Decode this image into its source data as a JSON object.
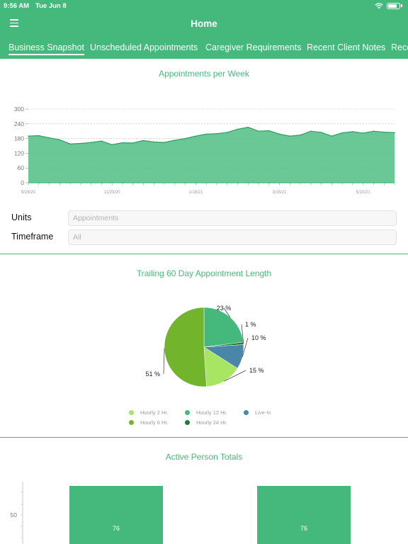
{
  "status_bar": {
    "time": "9:56 AM",
    "date": "Tue Jun 8"
  },
  "header": {
    "title": "Home"
  },
  "tabs": [
    {
      "label": "Business Snapshot",
      "active": true
    },
    {
      "label": "Unscheduled Appointments",
      "active": false
    },
    {
      "label": "Caregiver Requirements",
      "active": false
    },
    {
      "label": "Recent Client Notes",
      "active": false
    },
    {
      "label": "Rece",
      "active": false
    }
  ],
  "appointments_chart": {
    "title": "Appointments per Week",
    "chart_data": {
      "type": "area",
      "title": "Appointments per Week",
      "ylim": [
        0,
        300
      ],
      "y_ticks": [
        0,
        60,
        120,
        180,
        240,
        300
      ],
      "x_tick_labels": [
        "9/28/20",
        "11/23/20",
        "1/18/21",
        "3/15/21",
        "5/10/21"
      ],
      "values": [
        190,
        192,
        183,
        175,
        158,
        160,
        164,
        170,
        155,
        163,
        162,
        172,
        166,
        164,
        173,
        180,
        190,
        198,
        200,
        205,
        218,
        226,
        210,
        212,
        198,
        190,
        194,
        210,
        205,
        190,
        203,
        208,
        202,
        210,
        206,
        204
      ],
      "grid": true,
      "color": "#45b97c"
    }
  },
  "filters": {
    "units": {
      "label": "Units",
      "value": "Appointments"
    },
    "timeframe": {
      "label": "Timeframe",
      "value": "All"
    }
  },
  "pie_chart": {
    "title": "Trailing 60 Day Appointment Length",
    "chart_data": {
      "type": "pie",
      "title": "Trailing 60 Day Appointment Length",
      "slices": [
        {
          "name": "Hourly 12 Hr.",
          "value": 23,
          "label": "23 %",
          "color": "#45b97c"
        },
        {
          "name": "Hourly 24 Hr.",
          "value": 1,
          "label": "1 %",
          "color": "#1b7a3c"
        },
        {
          "name": "Live-In",
          "value": 10,
          "label": "10 %",
          "color": "#4a86a8"
        },
        {
          "name": "Hourly 2 Hr.",
          "value": 15,
          "label": "15 %",
          "color": "#a8e563"
        },
        {
          "name": "Hourly 6 Hr.",
          "value": 51,
          "label": "51 %",
          "color": "#72b52d"
        }
      ],
      "legend": [
        {
          "name": "Hourly 2 Hr.",
          "color": "#a8e563"
        },
        {
          "name": "Hourly 12 Hr.",
          "color": "#45b97c"
        },
        {
          "name": "Live-In",
          "color": "#4a86a8"
        },
        {
          "name": "Hourly 6 Hr.",
          "color": "#72b52d"
        },
        {
          "name": "Hourly 24 Hr.",
          "color": "#1b7a3c"
        }
      ]
    }
  },
  "totals_chart": {
    "title": "Active Person Totals",
    "chart_data": {
      "type": "bar",
      "title": "Active Person Totals",
      "values": [
        76,
        76
      ],
      "y_tick_labels": [
        "50"
      ],
      "color": "#45b97c"
    }
  }
}
